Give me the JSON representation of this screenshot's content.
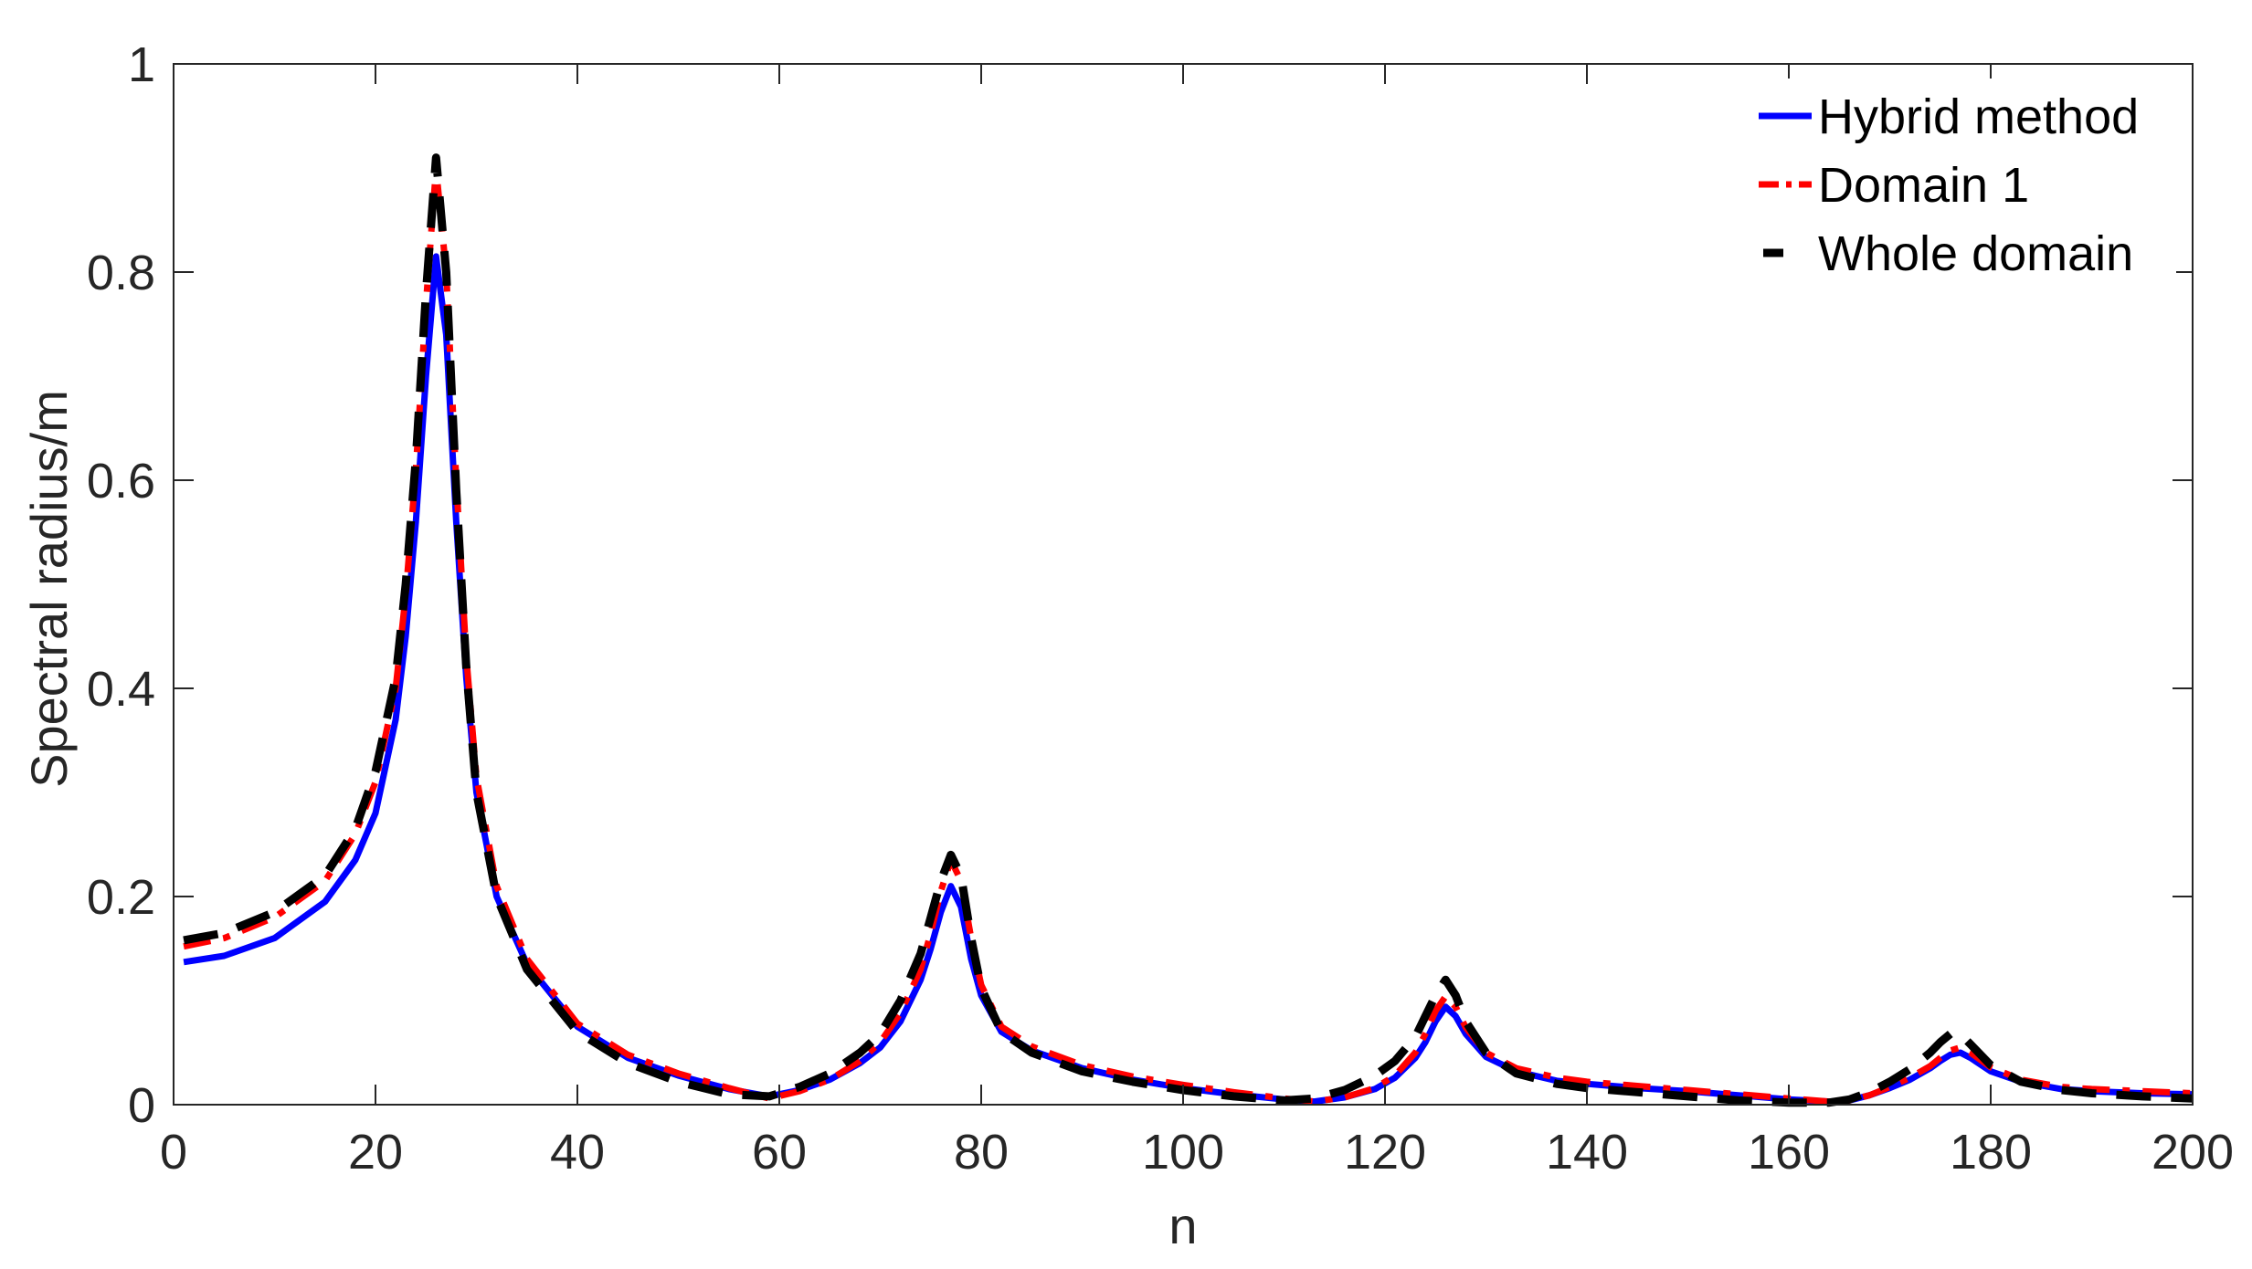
{
  "chart_data": {
    "type": "line",
    "title": "",
    "xlabel": "n",
    "ylabel": "Spectral radius/m",
    "xlim": [
      0,
      200
    ],
    "ylim": [
      0,
      1
    ],
    "xticks": [
      0,
      20,
      40,
      60,
      80,
      100,
      120,
      140,
      160,
      180,
      200
    ],
    "yticks": [
      0,
      0.2,
      0.4,
      0.6,
      0.8,
      1
    ],
    "xtick_labels": [
      "0",
      "20",
      "40",
      "60",
      "80",
      "100",
      "120",
      "140",
      "160",
      "180",
      "200"
    ],
    "ytick_labels": [
      "0",
      "0.2",
      "0.4",
      "0.6",
      "0.8",
      "1"
    ],
    "grid": false,
    "legend_position": "top-right",
    "series": [
      {
        "name": "Hybrid method",
        "color": "#0000ff",
        "style": "solid",
        "x": [
          1,
          5,
          10,
          15,
          18,
          20,
          22,
          23,
          24,
          25,
          26,
          27,
          28,
          29,
          30,
          32,
          35,
          40,
          45,
          50,
          55,
          59,
          62,
          65,
          68,
          70,
          72,
          74,
          75,
          76,
          77,
          78,
          79,
          80,
          82,
          85,
          90,
          95,
          100,
          105,
          110,
          113,
          116,
          119,
          121,
          123,
          124,
          125,
          126,
          127,
          128,
          130,
          133,
          137,
          140,
          145,
          150,
          155,
          160,
          164,
          166,
          168,
          170,
          172,
          174,
          175,
          176,
          177,
          178,
          180,
          183,
          187,
          190,
          195,
          200
        ],
        "y": [
          0.137,
          0.143,
          0.16,
          0.195,
          0.235,
          0.28,
          0.37,
          0.45,
          0.56,
          0.7,
          0.815,
          0.74,
          0.56,
          0.41,
          0.3,
          0.2,
          0.135,
          0.075,
          0.045,
          0.028,
          0.015,
          0.008,
          0.014,
          0.024,
          0.04,
          0.055,
          0.08,
          0.12,
          0.15,
          0.185,
          0.21,
          0.19,
          0.14,
          0.105,
          0.07,
          0.052,
          0.035,
          0.024,
          0.016,
          0.01,
          0.005,
          0.003,
          0.007,
          0.015,
          0.026,
          0.045,
          0.06,
          0.08,
          0.094,
          0.085,
          0.068,
          0.046,
          0.032,
          0.023,
          0.02,
          0.016,
          0.013,
          0.009,
          0.005,
          0.003,
          0.004,
          0.009,
          0.016,
          0.024,
          0.035,
          0.042,
          0.048,
          0.05,
          0.045,
          0.032,
          0.022,
          0.015,
          0.013,
          0.011,
          0.01
        ]
      },
      {
        "name": "Domain 1",
        "color": "#ff0000",
        "style": "dashdot",
        "x": [
          1,
          5,
          10,
          15,
          18,
          20,
          22,
          23,
          24,
          25,
          26,
          27,
          28,
          29,
          30,
          32,
          35,
          40,
          45,
          50,
          55,
          59,
          62,
          65,
          68,
          70,
          72,
          74,
          75,
          76,
          77,
          78,
          79,
          80,
          82,
          85,
          90,
          95,
          100,
          105,
          110,
          113,
          116,
          119,
          121,
          123,
          124,
          125,
          126,
          127,
          128,
          130,
          133,
          137,
          140,
          145,
          150,
          155,
          160,
          164,
          166,
          168,
          170,
          172,
          174,
          175,
          176,
          177,
          178,
          180,
          183,
          187,
          190,
          195,
          200
        ],
        "y": [
          0.152,
          0.16,
          0.18,
          0.215,
          0.26,
          0.31,
          0.4,
          0.49,
          0.61,
          0.77,
          0.9,
          0.8,
          0.6,
          0.43,
          0.315,
          0.21,
          0.14,
          0.078,
          0.048,
          0.03,
          0.016,
          0.006,
          0.013,
          0.024,
          0.042,
          0.06,
          0.088,
          0.13,
          0.165,
          0.205,
          0.235,
          0.215,
          0.16,
          0.115,
          0.075,
          0.056,
          0.038,
          0.027,
          0.019,
          0.012,
          0.006,
          0.003,
          0.007,
          0.016,
          0.028,
          0.05,
          0.068,
          0.09,
          0.104,
          0.094,
          0.074,
          0.05,
          0.035,
          0.026,
          0.022,
          0.018,
          0.014,
          0.01,
          0.006,
          0.003,
          0.004,
          0.009,
          0.017,
          0.026,
          0.037,
          0.045,
          0.052,
          0.055,
          0.05,
          0.036,
          0.024,
          0.017,
          0.015,
          0.013,
          0.011
        ]
      },
      {
        "name": "Whole domain",
        "color": "#000000",
        "style": "dashed",
        "x": [
          1,
          5,
          10,
          15,
          18,
          20,
          22,
          23,
          24,
          25,
          26,
          27,
          28,
          29,
          30,
          32,
          35,
          40,
          45,
          50,
          55,
          59,
          62,
          65,
          68,
          70,
          72,
          74,
          75,
          76,
          77,
          78,
          79,
          80,
          82,
          85,
          90,
          95,
          100,
          105,
          110,
          113,
          116,
          119,
          121,
          123,
          124,
          125,
          126,
          127,
          128,
          130,
          133,
          137,
          140,
          145,
          150,
          155,
          160,
          164,
          166,
          168,
          170,
          172,
          174,
          175,
          176,
          177,
          178,
          180,
          183,
          187,
          190,
          195,
          200
        ],
        "y": [
          0.158,
          0.165,
          0.185,
          0.22,
          0.265,
          0.32,
          0.41,
          0.5,
          0.62,
          0.78,
          0.91,
          0.8,
          0.59,
          0.42,
          0.3,
          0.2,
          0.13,
          0.07,
          0.04,
          0.022,
          0.01,
          0.008,
          0.017,
          0.03,
          0.05,
          0.068,
          0.1,
          0.145,
          0.18,
          0.215,
          0.24,
          0.22,
          0.16,
          0.112,
          0.07,
          0.05,
          0.032,
          0.022,
          0.014,
          0.008,
          0.004,
          0.006,
          0.014,
          0.028,
          0.042,
          0.065,
          0.085,
          0.105,
          0.12,
          0.105,
          0.08,
          0.05,
          0.03,
          0.02,
          0.016,
          0.012,
          0.008,
          0.004,
          0.002,
          0.002,
          0.005,
          0.012,
          0.022,
          0.034,
          0.05,
          0.06,
          0.068,
          0.068,
          0.058,
          0.038,
          0.022,
          0.014,
          0.011,
          0.008,
          0.006
        ]
      }
    ]
  }
}
